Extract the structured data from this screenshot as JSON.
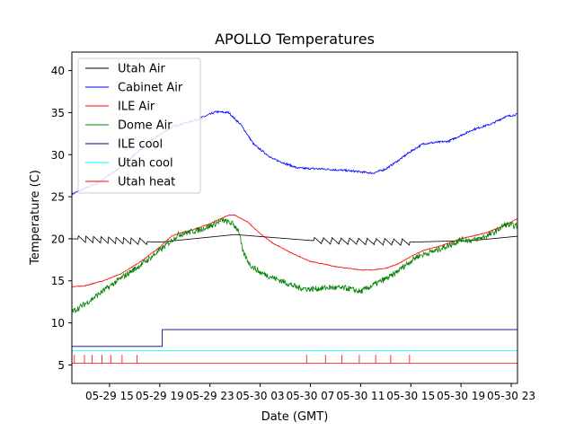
{
  "chart_data": {
    "type": "line",
    "title": "APOLLO Temperatures",
    "xlabel": "Date (GMT)",
    "ylabel": "Temperature (C)",
    "x_unit": "hours since 05-29 12:00 GMT",
    "xlim": [
      0,
      35.5
    ],
    "ylim": [
      2.8,
      42.2
    ],
    "x_ticks": [
      {
        "x": 3,
        "label": "05-29 15"
      },
      {
        "x": 7,
        "label": "05-29 19"
      },
      {
        "x": 11,
        "label": "05-29 23"
      },
      {
        "x": 15,
        "label": "05-30 03"
      },
      {
        "x": 19,
        "label": "05-30 07"
      },
      {
        "x": 23,
        "label": "05-30 11"
      },
      {
        "x": 27,
        "label": "05-30 15"
      },
      {
        "x": 31,
        "label": "05-30 19"
      },
      {
        "x": 35,
        "label": "05-30 23"
      }
    ],
    "y_ticks": [
      5,
      10,
      15,
      20,
      25,
      30,
      35,
      40
    ],
    "legend_position": "top-left",
    "series": [
      {
        "name": "Utah Air",
        "color": "#000000",
        "kind": "sawtooth",
        "points": [
          [
            0,
            20.0
          ],
          [
            7,
            19.6
          ],
          [
            13,
            20.5
          ],
          [
            19,
            19.8
          ],
          [
            27,
            19.6
          ],
          [
            32,
            19.8
          ],
          [
            35.5,
            20.3
          ]
        ],
        "teeth_x": [
          0.5,
          1.1,
          1.7,
          2.3,
          2.9,
          3.5,
          4.1,
          4.7,
          5.4,
          19.3,
          20.0,
          20.7,
          21.4,
          22.1,
          22.8,
          23.5,
          24.2,
          24.9,
          25.6,
          26.3
        ],
        "tooth_height": 0.8
      },
      {
        "name": "Cabinet Air",
        "color": "#0000ff",
        "kind": "line",
        "points": [
          [
            0,
            25.3
          ],
          [
            2,
            26.6
          ],
          [
            4,
            28.6
          ],
          [
            6,
            31.4
          ],
          [
            8,
            33.3
          ],
          [
            10,
            34.2
          ],
          [
            11.5,
            35.1
          ],
          [
            12.5,
            35.0
          ],
          [
            13.5,
            33.5
          ],
          [
            14.5,
            31.2
          ],
          [
            16,
            29.5
          ],
          [
            18,
            28.4
          ],
          [
            20,
            28.3
          ],
          [
            22,
            28.1
          ],
          [
            24,
            27.8
          ],
          [
            25,
            28.3
          ],
          [
            26,
            29.3
          ],
          [
            27,
            30.4
          ],
          [
            28,
            31.3
          ],
          [
            30,
            31.6
          ],
          [
            32,
            33.0
          ],
          [
            33.5,
            33.7
          ],
          [
            34.5,
            34.5
          ],
          [
            35.5,
            34.8
          ]
        ],
        "noise": 0.12
      },
      {
        "name": "ILE Air",
        "color": "#ff0000",
        "kind": "line",
        "points": [
          [
            0,
            14.3
          ],
          [
            1,
            14.4
          ],
          [
            2.5,
            15.0
          ],
          [
            4,
            15.9
          ],
          [
            5.5,
            17.3
          ],
          [
            7,
            19.0
          ],
          [
            8,
            20.4
          ],
          [
            9.5,
            21.0
          ],
          [
            11,
            21.8
          ],
          [
            12.5,
            22.8
          ],
          [
            13,
            22.8
          ],
          [
            14,
            22.0
          ],
          [
            15,
            20.6
          ],
          [
            16,
            19.5
          ],
          [
            17.5,
            18.3
          ],
          [
            19,
            17.3
          ],
          [
            21,
            16.7
          ],
          [
            23,
            16.3
          ],
          [
            24,
            16.3
          ],
          [
            25,
            16.5
          ],
          [
            26,
            17.0
          ],
          [
            27,
            17.9
          ],
          [
            28,
            18.6
          ],
          [
            29.5,
            19.2
          ],
          [
            31,
            20.0
          ],
          [
            33,
            20.7
          ],
          [
            34.5,
            21.6
          ],
          [
            35.5,
            22.4
          ]
        ],
        "noise": 0.05
      },
      {
        "name": "Dome Air",
        "color": "#008000",
        "kind": "line",
        "points": [
          [
            0,
            11.3
          ],
          [
            1,
            12.2
          ],
          [
            2.5,
            13.8
          ],
          [
            4,
            15.4
          ],
          [
            5.5,
            16.9
          ],
          [
            7,
            18.6
          ],
          [
            8.5,
            20.5
          ],
          [
            10,
            21.0
          ],
          [
            11,
            21.5
          ],
          [
            12,
            22.2
          ],
          [
            12.8,
            21.8
          ],
          [
            13.3,
            21.0
          ],
          [
            13.6,
            18.5
          ],
          [
            14.2,
            16.9
          ],
          [
            15,
            16.0
          ],
          [
            16,
            15.4
          ],
          [
            17,
            14.8
          ],
          [
            18,
            14.2
          ],
          [
            19,
            14.0
          ],
          [
            20.5,
            14.2
          ],
          [
            22,
            14.1
          ],
          [
            23,
            13.7
          ],
          [
            24,
            14.5
          ],
          [
            25.5,
            15.6
          ],
          [
            26.5,
            16.8
          ],
          [
            27.5,
            17.9
          ],
          [
            29,
            18.6
          ],
          [
            30,
            19.2
          ],
          [
            31,
            19.9
          ],
          [
            32,
            19.8
          ],
          [
            33.5,
            20.6
          ],
          [
            34.5,
            21.7
          ],
          [
            35.5,
            21.5
          ]
        ],
        "noise": 0.35
      },
      {
        "name": "ILE cool",
        "color": "#000080",
        "kind": "step",
        "points": [
          [
            0,
            7.2
          ],
          [
            7.2,
            7.2
          ],
          [
            7.2,
            9.2
          ],
          [
            35.5,
            9.2
          ]
        ]
      },
      {
        "name": "Utah cool",
        "color": "#00ffff",
        "kind": "step",
        "points": [
          [
            0,
            6.7
          ],
          [
            35.5,
            6.7
          ]
        ]
      },
      {
        "name": "Utah heat",
        "color": "#ff0000",
        "kind": "pulses",
        "base": 5.2,
        "pulse_top": 6.2,
        "pulse_x": [
          0.2,
          1.0,
          1.6,
          2.4,
          3.1,
          4.0,
          5.2,
          18.7,
          20.2,
          21.5,
          22.9,
          24.2,
          25.4,
          26.9
        ],
        "start_dip": 4.1
      }
    ]
  }
}
